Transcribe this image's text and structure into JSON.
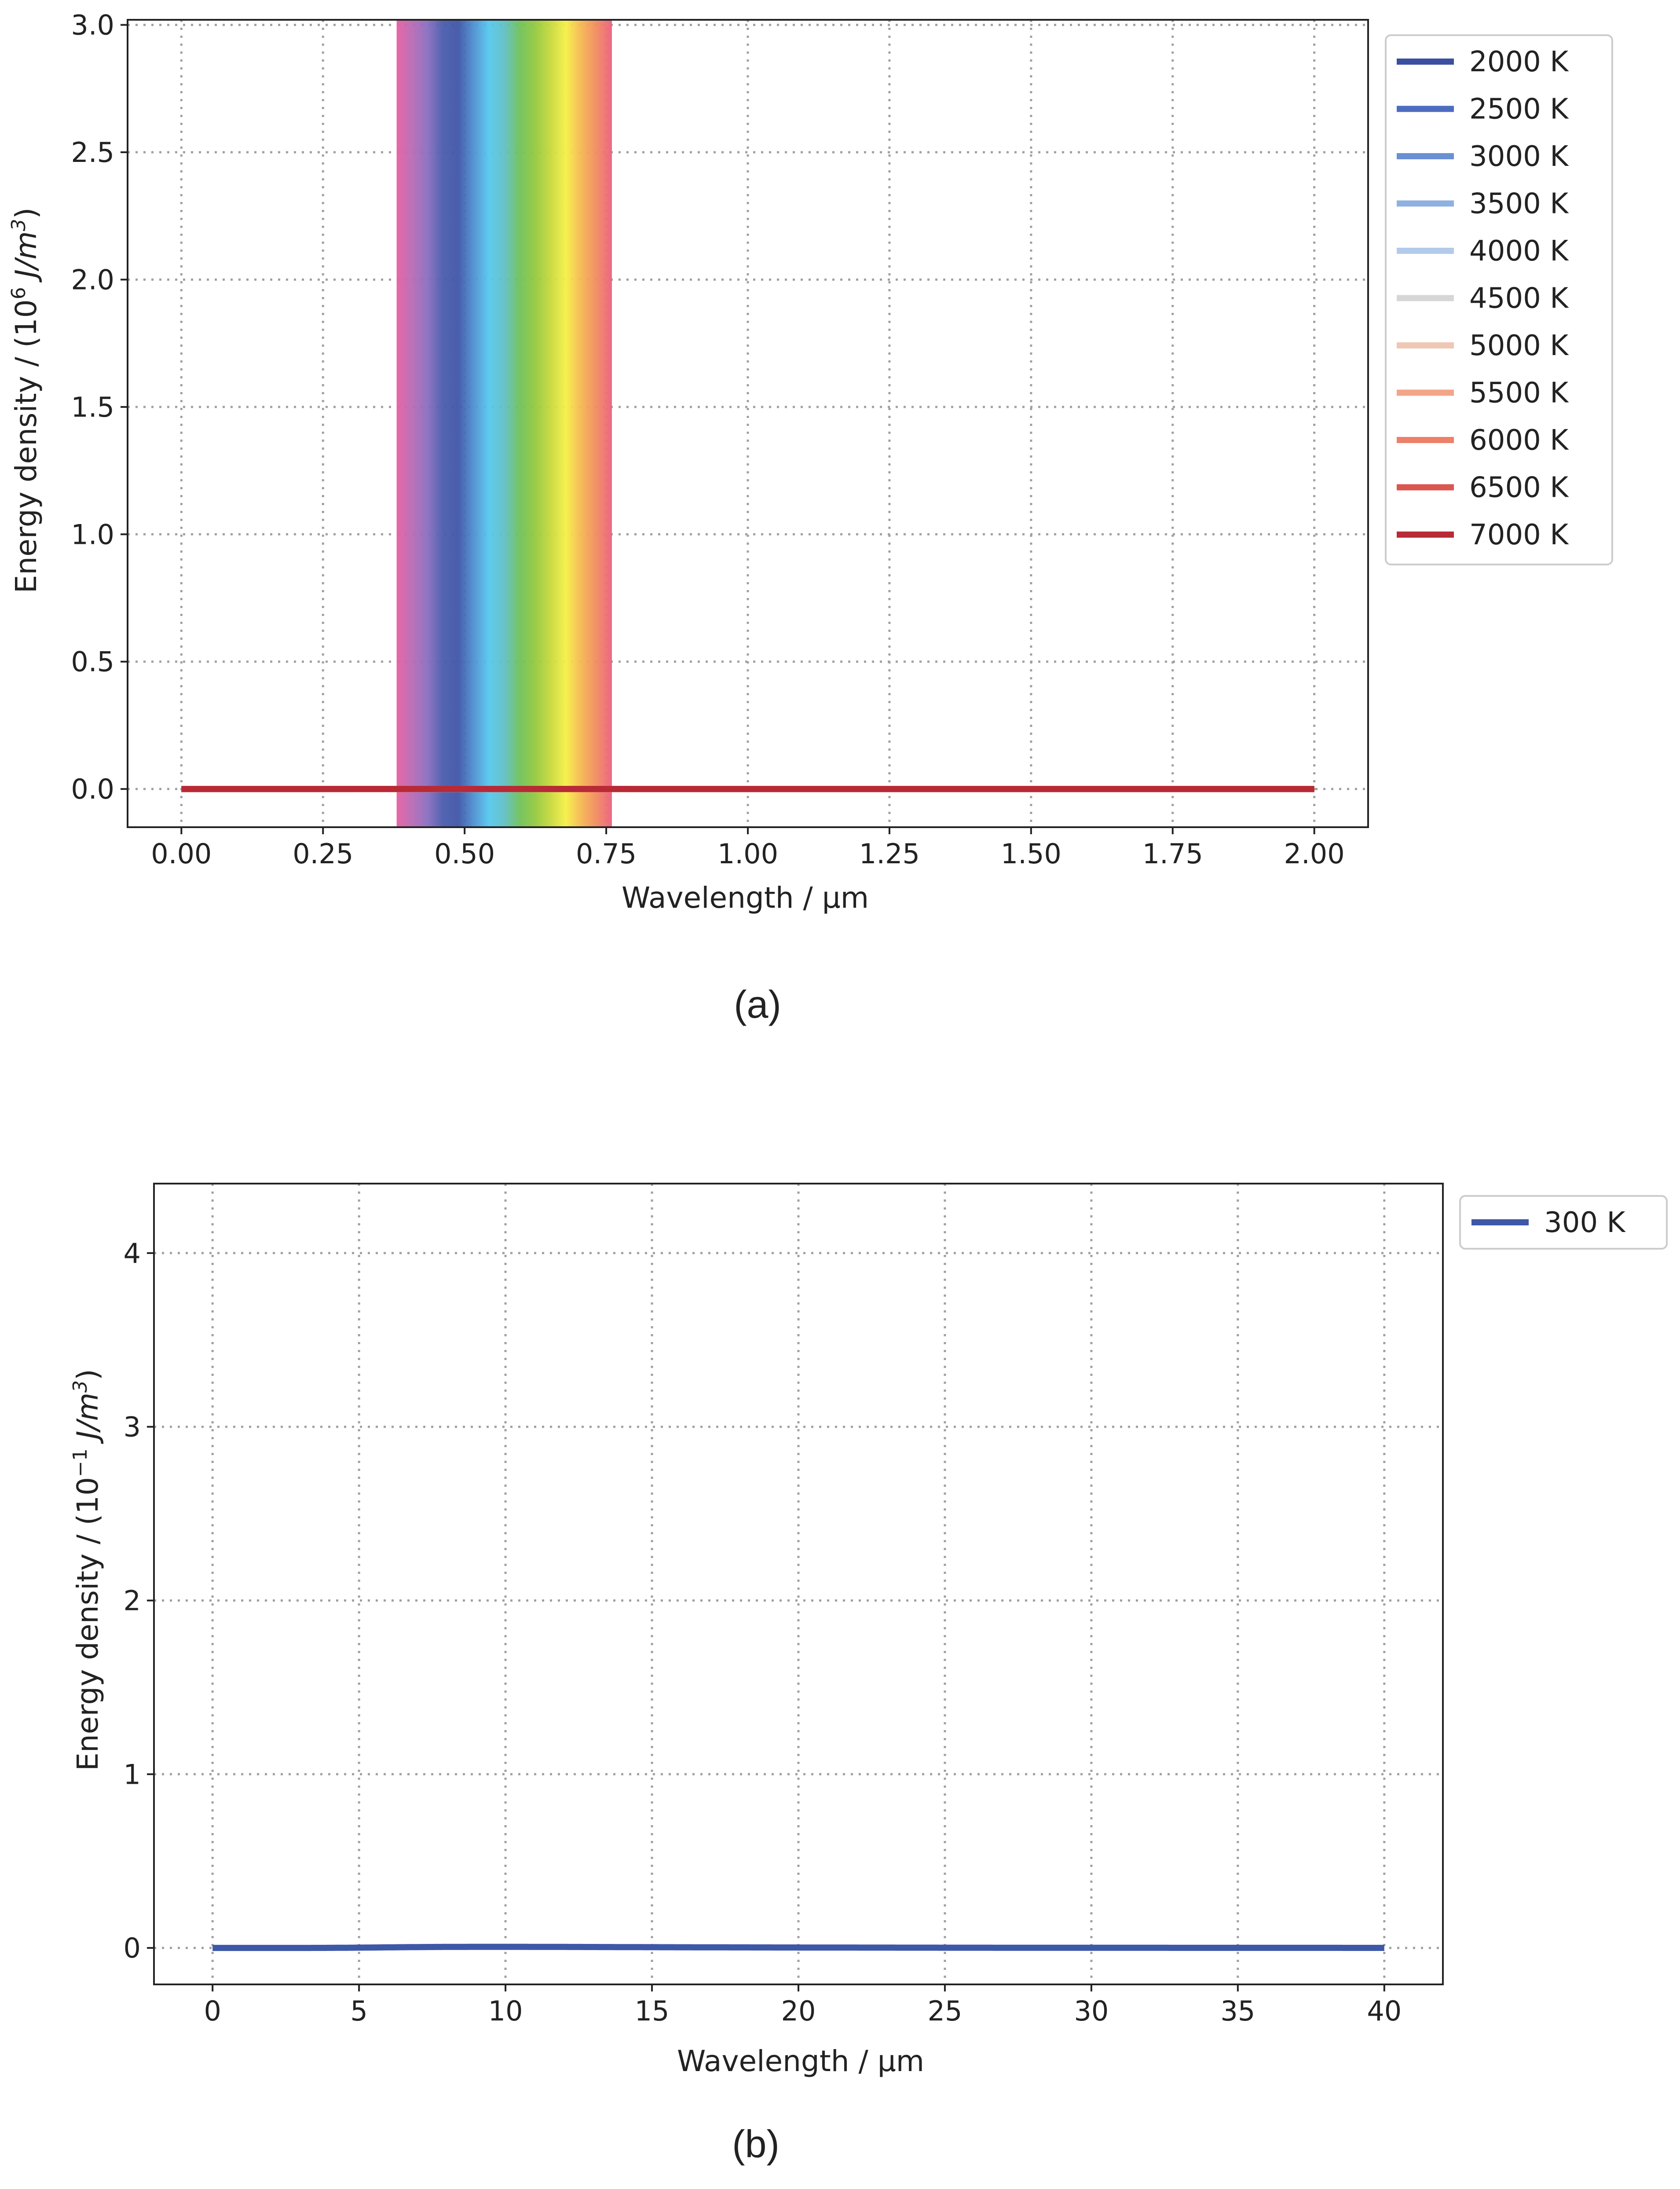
{
  "chart_data": [
    {
      "type": "line",
      "panel": "a",
      "caption": "(a)",
      "xlabel": "Wavelength / μm",
      "ylabel_main": "Energy density / (10",
      "ylabel_exp": "6",
      "ylabel_unit": " J/m",
      "ylabel_unit_exp": "3",
      "ylabel_close": ")",
      "xlim": [
        -0.095,
        2.095
      ],
      "ylim": [
        -0.15,
        3.02
      ],
      "xticks": [
        0.0,
        0.25,
        0.5,
        0.75,
        1.0,
        1.25,
        1.5,
        1.75,
        2.0
      ],
      "xtick_labels": [
        "0.00",
        "0.25",
        "0.50",
        "0.75",
        "1.00",
        "1.25",
        "1.50",
        "1.75",
        "2.00"
      ],
      "yticks": [
        0.0,
        0.5,
        1.0,
        1.5,
        2.0,
        2.5,
        3.0
      ],
      "ytick_labels": [
        "0.0",
        "0.5",
        "1.0",
        "1.5",
        "2.0",
        "2.5",
        "3.0"
      ],
      "y_scale": 1000000.0,
      "x_range": [
        0.0,
        2.0
      ],
      "grid": true,
      "legend_position": "outside right, top",
      "visible_band": {
        "x_start": 0.38,
        "x_end": 0.76,
        "colors": [
          "#e65fa0",
          "#b86ab5",
          "#8a6ec0",
          "#4a5cad",
          "#3f55a8",
          "#4d8fd0",
          "#56c8ee",
          "#5fc0c5",
          "#6fc15a",
          "#93c93e",
          "#c6d93c",
          "#f5f046",
          "#f6b652",
          "#f18a5f",
          "#ec5f80"
        ]
      },
      "series": [
        {
          "name": "2000 K",
          "temperature": 2000,
          "color": "#3b4fa0"
        },
        {
          "name": "2500 K",
          "temperature": 2500,
          "color": "#4e6cbf"
        },
        {
          "name": "3000 K",
          "temperature": 3000,
          "color": "#6a90d4"
        },
        {
          "name": "3500 K",
          "temperature": 3500,
          "color": "#8fb1e1"
        },
        {
          "name": "4000 K",
          "temperature": 4000,
          "color": "#b3cbeb"
        },
        {
          "name": "4500 K",
          "temperature": 4500,
          "color": "#d6d6d6"
        },
        {
          "name": "5000 K",
          "temperature": 5000,
          "color": "#efc7b5"
        },
        {
          "name": "5500 K",
          "temperature": 5500,
          "color": "#f3a588"
        },
        {
          "name": "6000 K",
          "temperature": 6000,
          "color": "#ee7f68"
        },
        {
          "name": "6500 K",
          "temperature": 6500,
          "color": "#db5650"
        },
        {
          "name": "7000 K",
          "temperature": 7000,
          "color": "#b82a36"
        }
      ]
    },
    {
      "type": "line",
      "panel": "b",
      "caption": "(b)",
      "xlabel": "Wavelength / μm",
      "ylabel_main": "Energy density / (10",
      "ylabel_exp": "−1",
      "ylabel_unit": " J/m",
      "ylabel_unit_exp": "3",
      "ylabel_close": ")",
      "xlim": [
        -2.0,
        42.0
      ],
      "ylim": [
        -0.21,
        4.4
      ],
      "xticks": [
        0,
        5,
        10,
        15,
        20,
        25,
        30,
        35,
        40
      ],
      "xtick_labels": [
        "0",
        "5",
        "10",
        "15",
        "20",
        "25",
        "30",
        "35",
        "40"
      ],
      "yticks": [
        0,
        1,
        2,
        3,
        4
      ],
      "ytick_labels": [
        "0",
        "1",
        "2",
        "3",
        "4"
      ],
      "y_scale": 0.1,
      "x_range": [
        0.0,
        40.0
      ],
      "grid": true,
      "legend_position": "outside right, top",
      "series": [
        {
          "name": "300 K",
          "temperature": 300,
          "color": "#3e58a8"
        }
      ]
    }
  ]
}
